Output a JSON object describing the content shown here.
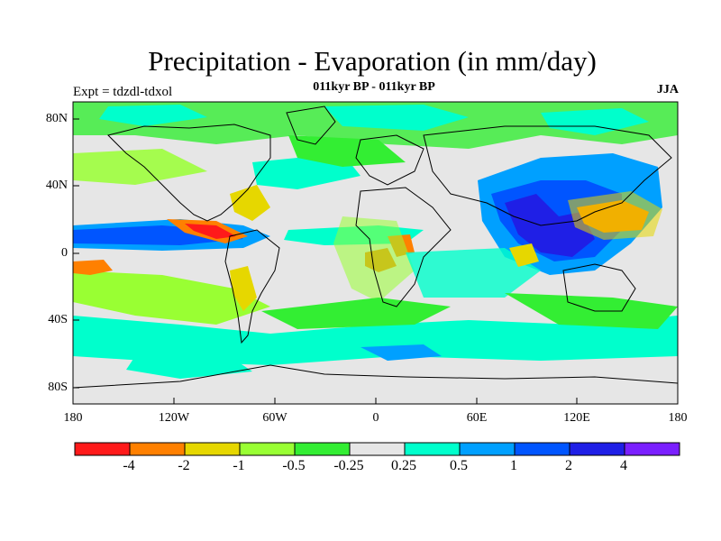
{
  "title": "Precipitation - Evaporation (in mm/day)",
  "subtitle": "011kyr BP - 011kyr BP",
  "experiment_label": "Expt = tdzdl-tdxol",
  "season": "JJA",
  "lat_ticks": [
    "80N",
    "40N",
    "0",
    "40S",
    "80S"
  ],
  "lon_ticks": [
    "180",
    "120W",
    "60W",
    "0",
    "60E",
    "120E",
    "180"
  ],
  "colorbar": {
    "colors": [
      "#ff1a1a",
      "#ff8000",
      "#e6d700",
      "#99ff33",
      "#33ee33",
      "#e6e6e6",
      "#00ffcc",
      "#00a0ff",
      "#0055ff",
      "#1f1fe6",
      "#7a1fff"
    ],
    "tick_labels": [
      "-4",
      "-2",
      "-1",
      "-0.5",
      "-0.25",
      "0.25",
      "0.5",
      "1",
      "2",
      "4"
    ]
  }
}
